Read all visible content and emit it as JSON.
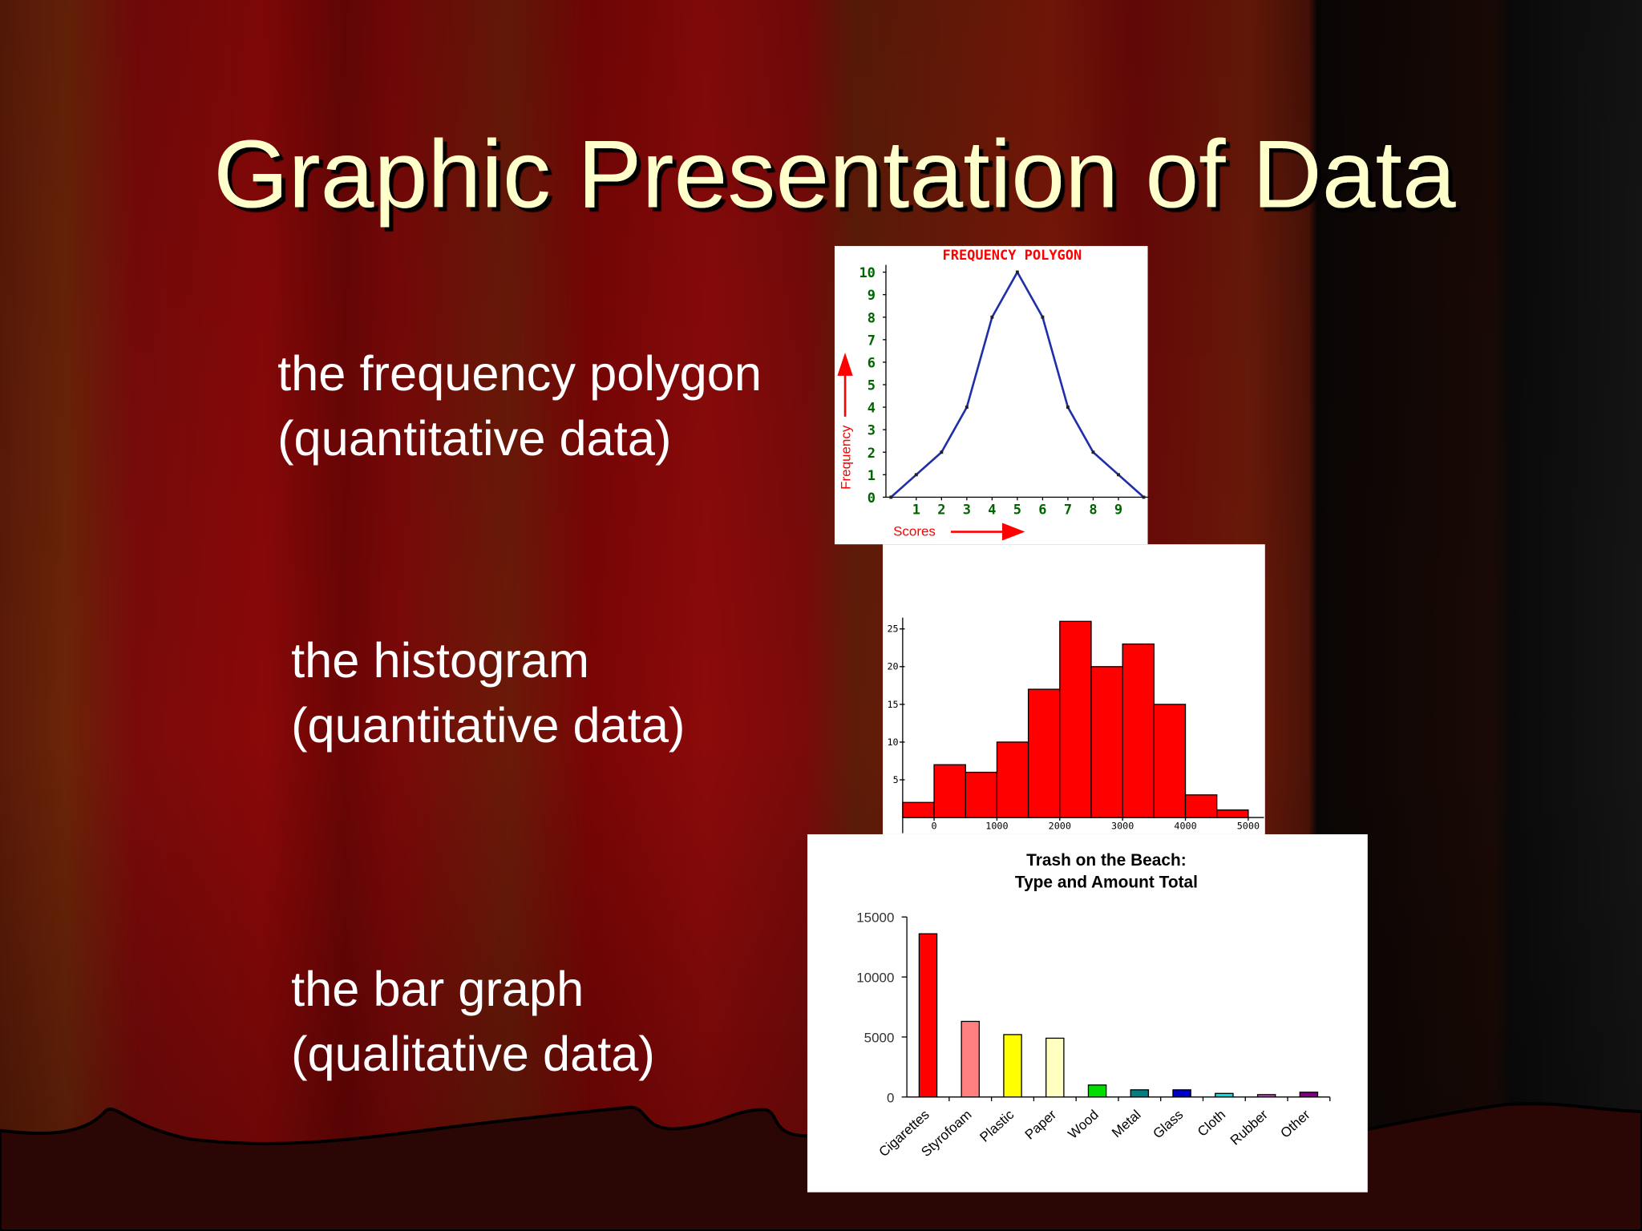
{
  "title": "Graphic Presentation of Data",
  "items": [
    {
      "label": "the frequency polygon",
      "note": "(quantitative data)"
    },
    {
      "label": "the histogram",
      "note": "(quantitative data)"
    },
    {
      "label": "the bar graph",
      "note": "(qualitative data)"
    }
  ],
  "chart_data": [
    {
      "type": "line",
      "title": "FREQUENCY POLYGON",
      "x_label": "Scores",
      "y_label": "Frequency",
      "x": [
        0,
        1,
        2,
        3,
        4,
        5,
        6,
        7,
        8,
        9,
        10
      ],
      "values": [
        0,
        1,
        2,
        4,
        8,
        10,
        8,
        4,
        2,
        1,
        0
      ],
      "color": "#1f2fa8",
      "tick_color": "#006400",
      "xlim": [
        -0.2,
        10.2
      ],
      "ylim": [
        0,
        10
      ],
      "xticks": [
        1,
        2,
        3,
        4,
        5,
        6,
        7,
        8,
        9
      ],
      "yticks": [
        0,
        1,
        2,
        3,
        4,
        5,
        6,
        7,
        8,
        9,
        10
      ]
    },
    {
      "type": "histogram",
      "bins": [
        -500,
        0,
        500,
        1000,
        1500,
        2000,
        2500,
        3000,
        3500,
        4000,
        4500,
        5000
      ],
      "values": [
        2,
        7,
        6,
        10,
        17,
        26,
        20,
        23,
        15,
        3,
        1
      ],
      "color": "#ff0000",
      "xlim": [
        -500,
        5250
      ],
      "ylim": [
        0,
        26.5
      ],
      "xticks": [
        0,
        1000,
        2000,
        3000,
        4000,
        5000
      ],
      "yticks": [
        5,
        10,
        15,
        20,
        25
      ]
    },
    {
      "type": "bar",
      "title": "Trash on the Beach:",
      "subtitle": "Type and Amount Total",
      "categories": [
        "Cigarettes",
        "Styrofoam",
        "Plastic",
        "Paper",
        "Wood",
        "Metal",
        "Glass",
        "Cloth",
        "Rubber",
        "Other"
      ],
      "values": [
        13600,
        6300,
        5200,
        4900,
        1000,
        600,
        600,
        300,
        200,
        400
      ],
      "colors": [
        "#ff0000",
        "#ff8080",
        "#ffff00",
        "#ffffc0",
        "#00dd00",
        "#008080",
        "#0000cc",
        "#00e0e0",
        "#cc44cc",
        "#800080"
      ],
      "ylim": [
        0,
        15000
      ],
      "yticks": [
        0,
        5000,
        10000,
        15000
      ]
    }
  ]
}
